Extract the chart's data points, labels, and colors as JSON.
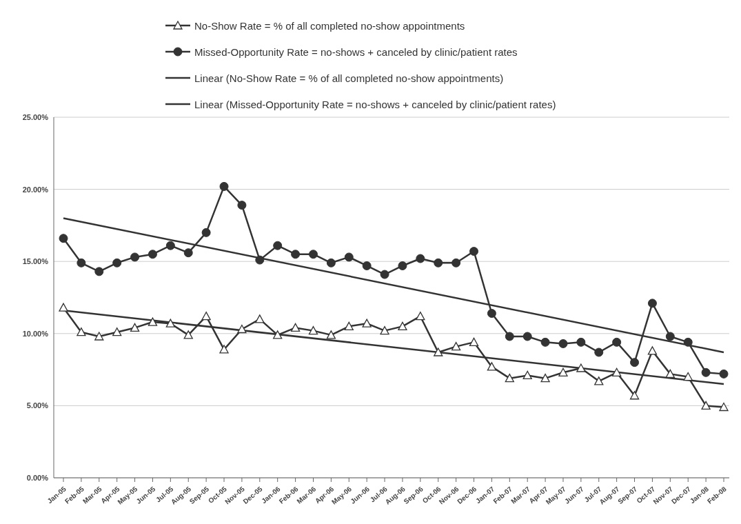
{
  "chart_data": {
    "type": "line",
    "categories": [
      "Jan-05",
      "Feb-05",
      "Mar-05",
      "Apr-05",
      "May-05",
      "Jun-05",
      "Jul-05",
      "Aug-05",
      "Sep-05",
      "Oct-05",
      "Nov-05",
      "Dec-05",
      "Jan-06",
      "Feb-06",
      "Mar-06",
      "Apr-06",
      "May-06",
      "Jun-06",
      "Jul-06",
      "Aug-06",
      "Sep-06",
      "Oct-06",
      "Nov-06",
      "Dec-06",
      "Jan-07",
      "Feb-07",
      "Mar-07",
      "Apr-07",
      "May-07",
      "Jun-07",
      "Jul-07",
      "Aug-07",
      "Sep-07",
      "Oct-07",
      "Nov-07",
      "Dec-07",
      "Jan-08",
      "Feb-08"
    ],
    "series": [
      {
        "name": "No-Show Rate = % of all completed no-show appointments",
        "color": "#333333",
        "marker": "triangle",
        "values": [
          11.8,
          10.1,
          9.8,
          10.1,
          10.4,
          10.8,
          10.7,
          9.9,
          11.2,
          8.9,
          10.3,
          11.0,
          9.9,
          10.4,
          10.2,
          9.9,
          10.5,
          10.7,
          10.2,
          10.5,
          11.2,
          8.7,
          9.1,
          9.4,
          7.7,
          6.9,
          7.1,
          6.9,
          7.3,
          7.6,
          6.7,
          7.3,
          5.7,
          8.8,
          7.2,
          7.0,
          5.0,
          4.9
        ]
      },
      {
        "name": "Missed-Opportunity Rate = no-shows + canceled by clinic/patient rates",
        "color": "#333333",
        "marker": "circle",
        "values": [
          16.6,
          14.9,
          14.3,
          14.9,
          15.3,
          15.5,
          16.1,
          15.6,
          17.0,
          20.2,
          18.9,
          15.1,
          16.1,
          15.5,
          15.5,
          14.9,
          15.3,
          14.7,
          14.1,
          14.7,
          15.2,
          14.9,
          14.9,
          15.7,
          11.4,
          9.8,
          9.8,
          9.4,
          9.3,
          9.4,
          8.7,
          9.4,
          8.0,
          12.1,
          9.8,
          9.4,
          7.3,
          7.2
        ]
      },
      {
        "name": "Linear (No-Show Rate = % of all completed no-show appointments)",
        "color": "#333333",
        "marker": "none",
        "values": [
          11.6,
          null,
          null,
          null,
          null,
          null,
          null,
          null,
          null,
          null,
          null,
          null,
          null,
          null,
          null,
          null,
          null,
          null,
          null,
          null,
          null,
          null,
          null,
          null,
          null,
          null,
          null,
          null,
          null,
          null,
          null,
          null,
          null,
          null,
          null,
          null,
          null,
          6.5
        ]
      },
      {
        "name": "Linear (Missed-Opportunity Rate = no-shows + canceled by clinic/patient rates)",
        "color": "#333333",
        "marker": "none",
        "values": [
          18.0,
          null,
          null,
          null,
          null,
          null,
          null,
          null,
          null,
          null,
          null,
          null,
          null,
          null,
          null,
          null,
          null,
          null,
          null,
          null,
          null,
          null,
          null,
          null,
          null,
          null,
          null,
          null,
          null,
          null,
          null,
          null,
          null,
          null,
          null,
          null,
          null,
          8.7
        ]
      }
    ],
    "ylim": [
      0,
      25
    ],
    "yticks": [
      {
        "value": 0,
        "label": "0.00%"
      },
      {
        "value": 5,
        "label": "5.00%"
      },
      {
        "value": 10,
        "label": "10.00%"
      },
      {
        "value": 15,
        "label": "15.00%"
      },
      {
        "value": 20,
        "label": "20.00%"
      },
      {
        "value": 25,
        "label": "25.00%"
      }
    ],
    "grid": "y",
    "legend": "top",
    "line_style": "solid"
  }
}
